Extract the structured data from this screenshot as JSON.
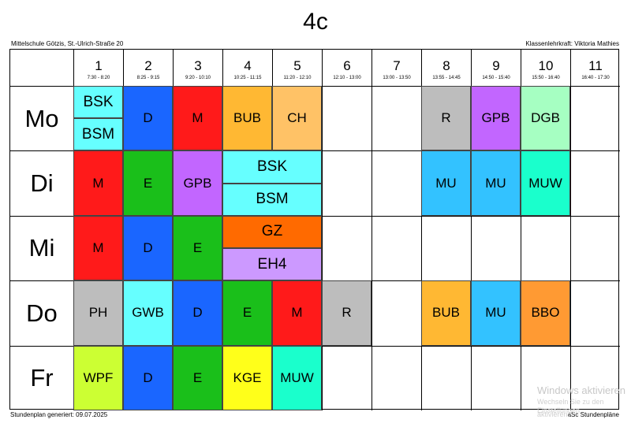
{
  "title": "4c",
  "school": "Mittelschule Götzis, St.-Ulrich-Straße 20",
  "teacher": "Klassenlehrkraft: Viktoria Mathies",
  "footer_left": "Stundenplan generiert: 09.07.2025",
  "footer_right": "aSc Stundenpläne",
  "watermark": {
    "line1": "Windows aktivieren",
    "line2": "Wechseln Sie zu den Einstellungen",
    "line3": "aktivieren."
  },
  "periods": [
    {
      "num": "1",
      "time": "7:30 - 8:20"
    },
    {
      "num": "2",
      "time": "8:25 - 9:15"
    },
    {
      "num": "3",
      "time": "9:20 - 10:10"
    },
    {
      "num": "4",
      "time": "10:25 - 11:15"
    },
    {
      "num": "5",
      "time": "11:20 - 12:10"
    },
    {
      "num": "6",
      "time": "12:10 - 13:00"
    },
    {
      "num": "7",
      "time": "13:00 - 13:50"
    },
    {
      "num": "8",
      "time": "13:55 - 14:45"
    },
    {
      "num": "9",
      "time": "14:50 - 15:40"
    },
    {
      "num": "10",
      "time": "15:50 - 16:40"
    },
    {
      "num": "11",
      "time": "16:40 - 17:30"
    }
  ],
  "days": [
    "Mo",
    "Di",
    "Mi",
    "Do",
    "Fr"
  ],
  "lessons": [
    {
      "day": 0,
      "period": 1,
      "span": 1,
      "part": "top",
      "subject": "BSK",
      "color": "#66ffff"
    },
    {
      "day": 0,
      "period": 1,
      "span": 1,
      "part": "bottom",
      "subject": "BSM",
      "color": "#66ffff"
    },
    {
      "day": 0,
      "period": 2,
      "span": 1,
      "part": "full",
      "subject": "D",
      "color": "#1a66ff"
    },
    {
      "day": 0,
      "period": 3,
      "span": 1,
      "part": "full",
      "subject": "M",
      "color": "#ff1a1a"
    },
    {
      "day": 0,
      "period": 4,
      "span": 1,
      "part": "full",
      "subject": "BUB",
      "color": "#ffb833"
    },
    {
      "day": 0,
      "period": 5,
      "span": 1,
      "part": "full",
      "subject": "CH",
      "color": "#ffc266"
    },
    {
      "day": 0,
      "period": 8,
      "span": 1,
      "part": "full",
      "subject": "R",
      "color": "#bdbdbd"
    },
    {
      "day": 0,
      "period": 9,
      "span": 1,
      "part": "full",
      "subject": "GPB",
      "color": "#c266ff"
    },
    {
      "day": 0,
      "period": 10,
      "span": 1,
      "part": "full",
      "subject": "DGB",
      "color": "#a6ffc2"
    },
    {
      "day": 1,
      "period": 1,
      "span": 1,
      "part": "full",
      "subject": "M",
      "color": "#ff1a1a"
    },
    {
      "day": 1,
      "period": 2,
      "span": 1,
      "part": "full",
      "subject": "E",
      "color": "#1abf1a"
    },
    {
      "day": 1,
      "period": 3,
      "span": 1,
      "part": "full",
      "subject": "GPB",
      "color": "#c266ff"
    },
    {
      "day": 1,
      "period": 4,
      "span": 2,
      "part": "top",
      "subject": "BSK",
      "color": "#66ffff"
    },
    {
      "day": 1,
      "period": 4,
      "span": 2,
      "part": "bottom",
      "subject": "BSM",
      "color": "#66ffff"
    },
    {
      "day": 1,
      "period": 8,
      "span": 1,
      "part": "full",
      "subject": "MU",
      "color": "#33c2ff"
    },
    {
      "day": 1,
      "period": 9,
      "span": 1,
      "part": "full",
      "subject": "MU",
      "color": "#33c2ff"
    },
    {
      "day": 1,
      "period": 10,
      "span": 1,
      "part": "full",
      "subject": "MUW",
      "color": "#1affcc"
    },
    {
      "day": 2,
      "period": 1,
      "span": 1,
      "part": "full",
      "subject": "M",
      "color": "#ff1a1a"
    },
    {
      "day": 2,
      "period": 2,
      "span": 1,
      "part": "full",
      "subject": "D",
      "color": "#1a66ff"
    },
    {
      "day": 2,
      "period": 3,
      "span": 1,
      "part": "full",
      "subject": "E",
      "color": "#1abf1a"
    },
    {
      "day": 2,
      "period": 4,
      "span": 2,
      "part": "top",
      "subject": "GZ",
      "color": "#ff6a00"
    },
    {
      "day": 2,
      "period": 4,
      "span": 2,
      "part": "bottom",
      "subject": "EH4",
      "color": "#cc99ff"
    },
    {
      "day": 3,
      "period": 1,
      "span": 1,
      "part": "full",
      "subject": "PH",
      "color": "#bdbdbd"
    },
    {
      "day": 3,
      "period": 2,
      "span": 1,
      "part": "full",
      "subject": "GWB",
      "color": "#66ffff"
    },
    {
      "day": 3,
      "period": 3,
      "span": 1,
      "part": "full",
      "subject": "D",
      "color": "#1a66ff"
    },
    {
      "day": 3,
      "period": 4,
      "span": 1,
      "part": "full",
      "subject": "E",
      "color": "#1abf1a"
    },
    {
      "day": 3,
      "period": 5,
      "span": 1,
      "part": "full",
      "subject": "M",
      "color": "#ff1a1a"
    },
    {
      "day": 3,
      "period": 6,
      "span": 1,
      "part": "full",
      "subject": "R",
      "color": "#bdbdbd"
    },
    {
      "day": 3,
      "period": 8,
      "span": 1,
      "part": "full",
      "subject": "BUB",
      "color": "#ffb833"
    },
    {
      "day": 3,
      "period": 9,
      "span": 1,
      "part": "full",
      "subject": "MU",
      "color": "#33c2ff"
    },
    {
      "day": 3,
      "period": 10,
      "span": 1,
      "part": "full",
      "subject": "BBO",
      "color": "#ff9a33"
    },
    {
      "day": 4,
      "period": 1,
      "span": 1,
      "part": "full",
      "subject": "WPF",
      "color": "#ccff33"
    },
    {
      "day": 4,
      "period": 2,
      "span": 1,
      "part": "full",
      "subject": "D",
      "color": "#1a66ff"
    },
    {
      "day": 4,
      "period": 3,
      "span": 1,
      "part": "full",
      "subject": "E",
      "color": "#1abf1a"
    },
    {
      "day": 4,
      "period": 4,
      "span": 1,
      "part": "full",
      "subject": "KGE",
      "color": "#ffff1a"
    },
    {
      "day": 4,
      "period": 5,
      "span": 1,
      "part": "full",
      "subject": "MUW",
      "color": "#1affcc"
    }
  ]
}
